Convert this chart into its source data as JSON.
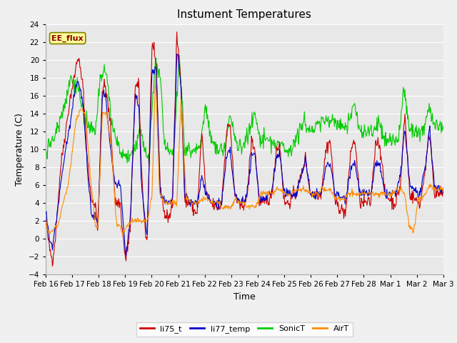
{
  "title": "Instument Temperatures",
  "ylabel": "Temperature (C)",
  "xlabel": "Time",
  "ylim": [
    -4,
    24
  ],
  "n_days": 16,
  "xtick_labels": [
    "Feb 16",
    "Feb 17",
    "Feb 18",
    "Feb 19",
    "Feb 20",
    "Feb 21",
    "Feb 22",
    "Feb 23",
    "Feb 24",
    "Feb 25",
    "Feb 26",
    "Feb 27",
    "Feb 28",
    "Mar 1",
    "Mar 2",
    "Mar 3"
  ],
  "annotation_text": "EE_flux",
  "annotation_color": "#8B0000",
  "annotation_bg": "#FFFF99",
  "annotation_border": "#808000",
  "colors": {
    "li75_t": "#CC0000",
    "li77_temp": "#0000CC",
    "SonicT": "#00CC00",
    "AirT": "#FF8C00"
  },
  "plot_bg": "#E8E8E8",
  "fig_bg": "#F0F0F0",
  "grid_color": "#FFFFFF",
  "title_fontsize": 11,
  "axis_fontsize": 9,
  "tick_fontsize": 7.5,
  "legend_fontsize": 8,
  "red_keypoints": [
    [
      0.0,
      2
    ],
    [
      0.15,
      -1
    ],
    [
      0.28,
      -2.5
    ],
    [
      0.4,
      0.5
    ],
    [
      0.6,
      8
    ],
    [
      0.8,
      12
    ],
    [
      1.0,
      16
    ],
    [
      1.15,
      18
    ],
    [
      1.3,
      20.5
    ],
    [
      1.5,
      17
    ],
    [
      1.7,
      8
    ],
    [
      1.85,
      4
    ],
    [
      2.0,
      4
    ],
    [
      2.1,
      1
    ],
    [
      2.28,
      17
    ],
    [
      2.4,
      17
    ],
    [
      2.6,
      13
    ],
    [
      2.8,
      4
    ],
    [
      3.0,
      4
    ],
    [
      3.1,
      0.5
    ],
    [
      3.22,
      -2.5
    ],
    [
      3.4,
      1
    ],
    [
      3.6,
      17
    ],
    [
      3.75,
      17
    ],
    [
      3.85,
      8
    ],
    [
      4.0,
      1
    ],
    [
      4.08,
      -0.5
    ],
    [
      4.28,
      22
    ],
    [
      4.45,
      19
    ],
    [
      4.6,
      6
    ],
    [
      4.8,
      2.5
    ],
    [
      5.0,
      2.5
    ],
    [
      5.1,
      4
    ],
    [
      5.28,
      23
    ],
    [
      5.45,
      17
    ],
    [
      5.6,
      4
    ],
    [
      5.8,
      4
    ],
    [
      6.0,
      3
    ],
    [
      6.1,
      3
    ],
    [
      6.28,
      12
    ],
    [
      6.45,
      5
    ],
    [
      6.65,
      4
    ],
    [
      6.85,
      3.5
    ],
    [
      7.0,
      3.5
    ],
    [
      7.08,
      4
    ],
    [
      7.28,
      12
    ],
    [
      7.42,
      13
    ],
    [
      7.6,
      5
    ],
    [
      7.8,
      3.5
    ],
    [
      8.0,
      4
    ],
    [
      8.08,
      4
    ],
    [
      8.28,
      11
    ],
    [
      8.42,
      10
    ],
    [
      8.6,
      4
    ],
    [
      8.8,
      4
    ],
    [
      9.0,
      4.5
    ],
    [
      9.08,
      4.5
    ],
    [
      9.28,
      10
    ],
    [
      9.42,
      10.5
    ],
    [
      9.6,
      4
    ],
    [
      9.8,
      4
    ],
    [
      10.0,
      5
    ],
    [
      10.08,
      5
    ],
    [
      10.28,
      7
    ],
    [
      10.45,
      9
    ],
    [
      10.65,
      5
    ],
    [
      11.0,
      5
    ],
    [
      11.08,
      5
    ],
    [
      11.28,
      10
    ],
    [
      11.45,
      11
    ],
    [
      11.65,
      4
    ],
    [
      12.0,
      3
    ],
    [
      12.08,
      3
    ],
    [
      12.28,
      10
    ],
    [
      12.45,
      11
    ],
    [
      12.65,
      4
    ],
    [
      13.0,
      4
    ],
    [
      13.08,
      4
    ],
    [
      13.28,
      11
    ],
    [
      13.45,
      10.5
    ],
    [
      13.65,
      5
    ],
    [
      14.0,
      4
    ],
    [
      14.08,
      4
    ],
    [
      14.28,
      6
    ],
    [
      14.45,
      14
    ],
    [
      14.65,
      5
    ],
    [
      15.0,
      4
    ],
    [
      15.08,
      4
    ],
    [
      15.28,
      8
    ],
    [
      15.45,
      12
    ],
    [
      15.65,
      5
    ],
    [
      16.0,
      5
    ]
  ],
  "blue_keypoints": [
    [
      0.0,
      3
    ],
    [
      0.15,
      0
    ],
    [
      0.28,
      -1
    ],
    [
      0.4,
      1.5
    ],
    [
      0.6,
      6
    ],
    [
      0.8,
      10
    ],
    [
      1.0,
      13
    ],
    [
      1.15,
      16
    ],
    [
      1.3,
      18
    ],
    [
      1.5,
      15
    ],
    [
      1.7,
      7
    ],
    [
      1.85,
      2.5
    ],
    [
      2.0,
      2.5
    ],
    [
      2.1,
      1.5
    ],
    [
      2.28,
      16
    ],
    [
      2.4,
      16
    ],
    [
      2.6,
      10
    ],
    [
      2.8,
      6
    ],
    [
      3.0,
      6
    ],
    [
      3.1,
      2.5
    ],
    [
      3.22,
      -2
    ],
    [
      3.4,
      2
    ],
    [
      3.6,
      16
    ],
    [
      3.75,
      15
    ],
    [
      3.85,
      6
    ],
    [
      4.0,
      2
    ],
    [
      4.08,
      0
    ],
    [
      4.28,
      19
    ],
    [
      4.45,
      19
    ],
    [
      4.6,
      5.5
    ],
    [
      4.8,
      4
    ],
    [
      5.0,
      4
    ],
    [
      5.1,
      4
    ],
    [
      5.28,
      21
    ],
    [
      5.45,
      17
    ],
    [
      5.6,
      5
    ],
    [
      5.8,
      4
    ],
    [
      6.0,
      4
    ],
    [
      6.1,
      4
    ],
    [
      6.28,
      7
    ],
    [
      6.45,
      5
    ],
    [
      6.65,
      4
    ],
    [
      6.85,
      4
    ],
    [
      7.0,
      4
    ],
    [
      7.08,
      4
    ],
    [
      7.28,
      9
    ],
    [
      7.42,
      10
    ],
    [
      7.6,
      5
    ],
    [
      7.8,
      4
    ],
    [
      8.0,
      4.5
    ],
    [
      8.08,
      4.5
    ],
    [
      8.28,
      9
    ],
    [
      8.42,
      9.5
    ],
    [
      8.6,
      4.5
    ],
    [
      8.8,
      4.5
    ],
    [
      9.0,
      5
    ],
    [
      9.08,
      5
    ],
    [
      9.28,
      9
    ],
    [
      9.42,
      9.5
    ],
    [
      9.6,
      5
    ],
    [
      9.8,
      5
    ],
    [
      10.0,
      5
    ],
    [
      10.08,
      5
    ],
    [
      10.28,
      7
    ],
    [
      10.45,
      9
    ],
    [
      10.65,
      5
    ],
    [
      11.0,
      5
    ],
    [
      11.08,
      5
    ],
    [
      11.28,
      8
    ],
    [
      11.45,
      8.5
    ],
    [
      11.65,
      5
    ],
    [
      12.0,
      4.5
    ],
    [
      12.08,
      4.5
    ],
    [
      12.28,
      8
    ],
    [
      12.45,
      8.5
    ],
    [
      12.65,
      5
    ],
    [
      13.0,
      5
    ],
    [
      13.08,
      5
    ],
    [
      13.28,
      8.5
    ],
    [
      13.45,
      8
    ],
    [
      13.65,
      5
    ],
    [
      14.0,
      5
    ],
    [
      14.08,
      5
    ],
    [
      14.28,
      7
    ],
    [
      14.45,
      12.5
    ],
    [
      14.65,
      6
    ],
    [
      15.0,
      5
    ],
    [
      15.08,
      5
    ],
    [
      15.28,
      8
    ],
    [
      15.45,
      12.5
    ],
    [
      15.65,
      5.5
    ],
    [
      16.0,
      5.5
    ]
  ],
  "green_keypoints": [
    [
      0.0,
      10
    ],
    [
      0.3,
      11
    ],
    [
      0.6,
      13.5
    ],
    [
      0.85,
      16
    ],
    [
      1.0,
      18
    ],
    [
      1.3,
      17
    ],
    [
      1.6,
      13
    ],
    [
      1.9,
      12
    ],
    [
      2.0,
      12
    ],
    [
      2.2,
      18
    ],
    [
      2.45,
      18.5
    ],
    [
      2.65,
      13
    ],
    [
      3.0,
      9.5
    ],
    [
      3.1,
      9.5
    ],
    [
      3.3,
      9
    ],
    [
      3.55,
      9.5
    ],
    [
      3.8,
      12.5
    ],
    [
      4.0,
      9.5
    ],
    [
      4.15,
      9
    ],
    [
      4.42,
      20
    ],
    [
      4.6,
      18
    ],
    [
      4.8,
      10
    ],
    [
      5.0,
      10
    ],
    [
      5.15,
      10
    ],
    [
      5.38,
      20.5
    ],
    [
      5.6,
      10
    ],
    [
      5.8,
      10
    ],
    [
      6.0,
      10
    ],
    [
      6.2,
      10
    ],
    [
      6.42,
      15
    ],
    [
      6.65,
      11
    ],
    [
      6.9,
      10
    ],
    [
      7.0,
      10
    ],
    [
      7.2,
      10
    ],
    [
      7.42,
      14
    ],
    [
      7.62,
      11
    ],
    [
      7.85,
      10
    ],
    [
      8.0,
      11
    ],
    [
      8.2,
      12
    ],
    [
      8.42,
      14
    ],
    [
      8.62,
      11
    ],
    [
      8.85,
      11
    ],
    [
      9.0,
      11
    ],
    [
      9.2,
      10.5
    ],
    [
      9.42,
      10.5
    ],
    [
      9.65,
      10
    ],
    [
      9.9,
      10
    ],
    [
      10.0,
      11
    ],
    [
      10.2,
      12
    ],
    [
      10.42,
      13
    ],
    [
      10.65,
      12
    ],
    [
      11.0,
      13
    ],
    [
      11.2,
      13
    ],
    [
      11.42,
      13.5
    ],
    [
      11.65,
      13
    ],
    [
      12.0,
      12.5
    ],
    [
      12.2,
      13
    ],
    [
      12.42,
      15
    ],
    [
      12.65,
      12
    ],
    [
      13.0,
      12
    ],
    [
      13.2,
      12
    ],
    [
      13.42,
      13
    ],
    [
      13.65,
      11
    ],
    [
      14.0,
      11
    ],
    [
      14.2,
      11
    ],
    [
      14.42,
      17
    ],
    [
      14.65,
      12
    ],
    [
      15.0,
      12
    ],
    [
      15.2,
      12
    ],
    [
      15.42,
      15
    ],
    [
      15.65,
      12.5
    ],
    [
      16.0,
      12.5
    ]
  ],
  "orange_keypoints": [
    [
      0.0,
      1.5
    ],
    [
      0.15,
      0.5
    ],
    [
      0.3,
      1
    ],
    [
      0.5,
      1.5
    ],
    [
      0.7,
      4
    ],
    [
      0.9,
      6
    ],
    [
      1.0,
      8
    ],
    [
      1.2,
      13
    ],
    [
      1.4,
      14.5
    ],
    [
      1.6,
      14
    ],
    [
      1.8,
      7
    ],
    [
      2.0,
      1.5
    ],
    [
      2.1,
      1
    ],
    [
      2.28,
      14
    ],
    [
      2.45,
      14
    ],
    [
      2.65,
      10
    ],
    [
      2.85,
      1.5
    ],
    [
      3.0,
      1.5
    ],
    [
      3.1,
      0.5
    ],
    [
      3.3,
      1.5
    ],
    [
      3.5,
      2
    ],
    [
      3.7,
      2
    ],
    [
      3.9,
      2
    ],
    [
      4.0,
      2
    ],
    [
      4.1,
      2
    ],
    [
      4.28,
      5
    ],
    [
      4.42,
      18.5
    ],
    [
      4.58,
      5
    ],
    [
      4.8,
      4
    ],
    [
      5.0,
      4
    ],
    [
      5.1,
      4
    ],
    [
      5.28,
      4
    ],
    [
      5.45,
      16
    ],
    [
      5.65,
      4.5
    ],
    [
      5.85,
      4
    ],
    [
      6.0,
      4
    ],
    [
      6.1,
      4
    ],
    [
      6.28,
      4.5
    ],
    [
      6.45,
      4.5
    ],
    [
      6.65,
      4
    ],
    [
      6.85,
      4
    ],
    [
      7.0,
      4
    ],
    [
      7.1,
      3.5
    ],
    [
      7.28,
      3.5
    ],
    [
      7.45,
      3.5
    ],
    [
      7.65,
      4.5
    ],
    [
      7.85,
      4
    ],
    [
      8.0,
      4
    ],
    [
      8.1,
      3.5
    ],
    [
      8.28,
      3.5
    ],
    [
      8.45,
      3.5
    ],
    [
      8.65,
      5
    ],
    [
      8.85,
      5
    ],
    [
      9.0,
      5
    ],
    [
      9.1,
      5
    ],
    [
      9.28,
      5.5
    ],
    [
      9.45,
      5.5
    ],
    [
      9.65,
      5
    ],
    [
      9.85,
      5
    ],
    [
      10.0,
      5.5
    ],
    [
      10.1,
      5.5
    ],
    [
      10.28,
      5.5
    ],
    [
      10.45,
      5.5
    ],
    [
      10.65,
      5
    ],
    [
      11.0,
      5
    ],
    [
      11.1,
      5.5
    ],
    [
      11.28,
      5.5
    ],
    [
      11.45,
      5.5
    ],
    [
      11.65,
      4.5
    ],
    [
      12.0,
      4.5
    ],
    [
      12.1,
      5
    ],
    [
      12.28,
      5
    ],
    [
      12.45,
      5
    ],
    [
      12.65,
      5
    ],
    [
      13.0,
      5
    ],
    [
      13.1,
      5
    ],
    [
      13.28,
      5
    ],
    [
      13.45,
      5
    ],
    [
      13.65,
      5
    ],
    [
      14.0,
      5
    ],
    [
      14.1,
      5.5
    ],
    [
      14.28,
      5.5
    ],
    [
      14.45,
      5
    ],
    [
      14.62,
      1.5
    ],
    [
      14.8,
      0.8
    ],
    [
      15.0,
      4.5
    ],
    [
      15.1,
      4.5
    ],
    [
      15.28,
      5
    ],
    [
      15.45,
      6
    ],
    [
      15.65,
      5.5
    ],
    [
      16.0,
      5.5
    ]
  ]
}
